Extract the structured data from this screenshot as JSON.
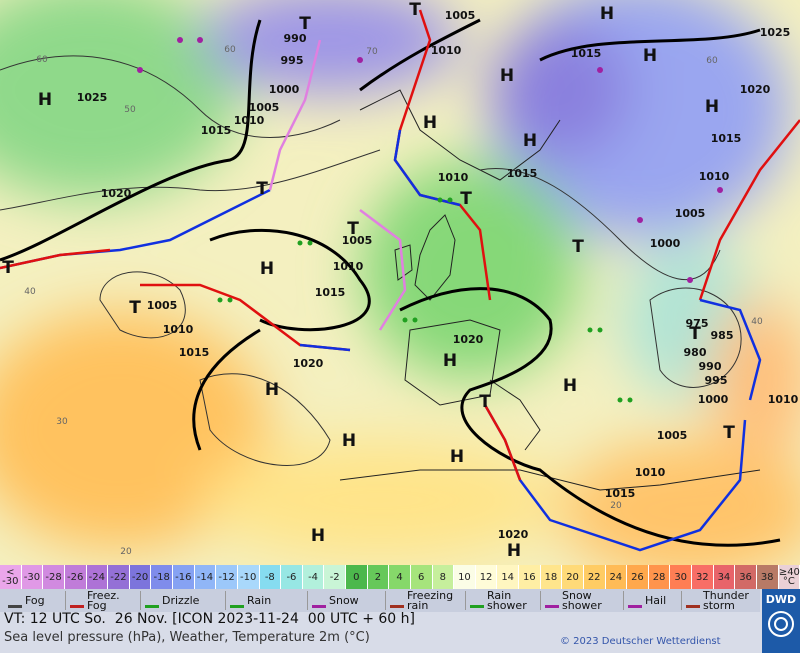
{
  "map": {
    "isobar_labels": [
      "1005",
      "990",
      "995",
      "1000",
      "1010",
      "1015",
      "1025",
      "1020",
      "1025",
      "1005",
      "1010",
      "1015",
      "1020",
      "1015",
      "1010",
      "1015",
      "1010",
      "1005",
      "1000",
      "1005",
      "1010",
      "1015",
      "1005",
      "1010",
      "1015",
      "1020",
      "1020",
      "975",
      "985",
      "980",
      "990",
      "995",
      "1000",
      "1005",
      "1010",
      "1015",
      "1020",
      "1010"
    ],
    "temperature_labels": [
      "60",
      "50",
      "60",
      "70",
      "60",
      "40",
      "30",
      "20",
      "40",
      "20"
    ],
    "pressure_centers": [
      "H",
      "T",
      "T",
      "H",
      "H",
      "H",
      "H",
      "H",
      "H",
      "T",
      "H",
      "T",
      "T",
      "H",
      "H",
      "H",
      "H",
      "T",
      "T",
      "H",
      "T",
      "H",
      "H",
      "T",
      "T",
      "T"
    ]
  },
  "legend": {
    "scale": [
      {
        "label": "< -30",
        "color": "#eaa6ea"
      },
      {
        "label": "-30",
        "color": "#e099e6"
      },
      {
        "label": "-28",
        "color": "#d18ae0"
      },
      {
        "label": "-26",
        "color": "#c07cd9"
      },
      {
        "label": "-24",
        "color": "#ad72d6"
      },
      {
        "label": "-22",
        "color": "#9470d6"
      },
      {
        "label": "-20",
        "color": "#7c74dc"
      },
      {
        "label": "-18",
        "color": "#7f8ceb"
      },
      {
        "label": "-16",
        "color": "#86a2f3"
      },
      {
        "label": "-14",
        "color": "#90b6f7"
      },
      {
        "label": "-12",
        "color": "#9cc8fa"
      },
      {
        "label": "-10",
        "color": "#a9d8fb"
      },
      {
        "label": "-8",
        "color": "#86dcf0"
      },
      {
        "label": "-6",
        "color": "#97e7e4"
      },
      {
        "label": "-4",
        "color": "#b2f0dc"
      },
      {
        "label": "-2",
        "color": "#c9f5d6"
      },
      {
        "label": "0",
        "color": "#4cb84c"
      },
      {
        "label": "2",
        "color": "#66c85a"
      },
      {
        "label": "4",
        "color": "#86d86a"
      },
      {
        "label": "6",
        "color": "#a6e47c"
      },
      {
        "label": "8",
        "color": "#c6ef9c"
      },
      {
        "label": "10",
        "color": "#fbfde6"
      },
      {
        "label": "12",
        "color": "#fffcd8"
      },
      {
        "label": "14",
        "color": "#fff6c0"
      },
      {
        "label": "16",
        "color": "#ffeea4"
      },
      {
        "label": "18",
        "color": "#ffe58c"
      },
      {
        "label": "20",
        "color": "#ffda78"
      },
      {
        "label": "22",
        "color": "#ffcc64"
      },
      {
        "label": "24",
        "color": "#ffbb56"
      },
      {
        "label": "26",
        "color": "#ffa84c"
      },
      {
        "label": "28",
        "color": "#ff944c"
      },
      {
        "label": "30",
        "color": "#ff7e54"
      },
      {
        "label": "32",
        "color": "#f86e66"
      },
      {
        "label": "34",
        "color": "#e8646a"
      },
      {
        "label": "36",
        "color": "#d26a66"
      },
      {
        "label": "38",
        "color": "#b87a66"
      },
      {
        "label": "≥40 °C",
        "color": "#ead0d6"
      }
    ],
    "items": [
      "Fog",
      "Freez. Fog",
      "Drizzle",
      "Rain",
      "Snow",
      "Freezing rain",
      "Rain shower",
      "Snow shower",
      "Hail",
      "Thunder storm"
    ]
  },
  "footer": {
    "valid_time": "VT: 12 UTC So.  26 Nov. [ICON 2023-11-24  00 UTC + 60 h]",
    "description": "Sea level pressure (hPa), Weather, Temperature 2m (°C)",
    "copyright": "© 2023 Deutscher Wetterdienst",
    "logo": "DWD"
  }
}
